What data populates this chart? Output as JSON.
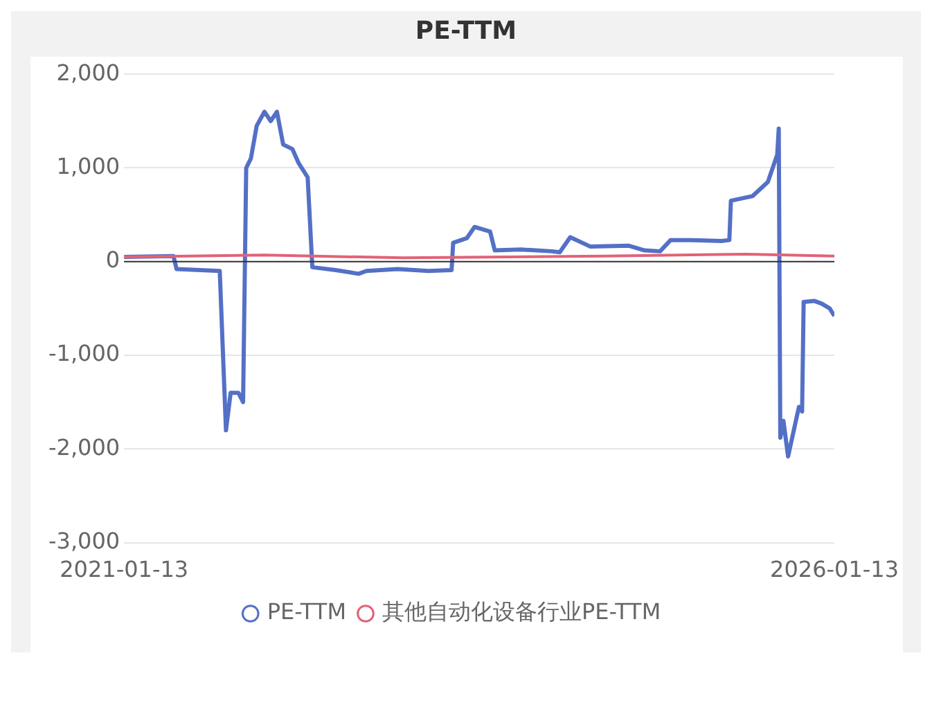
{
  "chart_data": {
    "type": "line",
    "title": "PE-TTM",
    "xlim": [
      "2021-01-13",
      "2026-01-13"
    ],
    "xticks": [
      "2021-01-13",
      "2026-01-13"
    ],
    "ylim": [
      -3000,
      2000
    ],
    "yticks": [
      {
        "value": -3000,
        "label": "-3,000"
      },
      {
        "value": -2000,
        "label": "-2,000"
      },
      {
        "value": -1000,
        "label": "-1,000"
      },
      {
        "value": 0,
        "label": "0"
      },
      {
        "value": 1000,
        "label": "1,000"
      },
      {
        "value": 2000,
        "label": "2,000"
      }
    ],
    "grid": "y",
    "legend": "bottom",
    "line_style": "solid",
    "series": [
      {
        "name": "PE-TTM",
        "color": "#5470c6",
        "x": [
          "2021-01-13",
          "2021-05-20",
          "2021-05-28",
          "2021-09-16",
          "2021-10-02",
          "2021-10-14",
          "2021-11-03",
          "2021-11-15",
          "2021-11-23",
          "2021-12-05",
          "2021-12-20",
          "2022-01-09",
          "2022-01-25",
          "2022-02-10",
          "2022-02-26",
          "2022-03-22",
          "2022-04-07",
          "2022-04-30",
          "2022-05-12",
          "2022-07-11",
          "2022-09-08",
          "2022-09-28",
          "2022-12-17",
          "2023-03-06",
          "2023-05-05",
          "2023-05-09",
          "2023-06-13",
          "2023-07-03",
          "2023-08-12",
          "2023-08-24",
          "2023-10-30",
          "2024-01-18",
          "2024-02-07",
          "2024-03-05",
          "2024-04-26",
          "2024-08-03",
          "2024-09-12",
          "2024-10-22",
          "2024-11-18",
          "2025-01-09",
          "2025-03-29",
          "2025-04-18",
          "2025-04-22",
          "2025-06-17",
          "2025-07-26",
          "2025-08-19",
          "2025-08-23",
          "2025-08-27",
          "2025-09-04",
          "2025-09-16",
          "2025-10-06",
          "2025-10-14",
          "2025-10-22",
          "2025-10-26",
          "2025-11-23",
          "2025-12-12",
          "2026-01-01",
          "2026-01-13"
        ],
        "values": [
          50,
          60,
          -80,
          -100,
          -1800,
          -1400,
          -1400,
          -1500,
          1000,
          1100,
          1450,
          1600,
          1500,
          1600,
          1250,
          1200,
          1050,
          900,
          -60,
          -90,
          -130,
          -100,
          -80,
          -100,
          -90,
          200,
          250,
          370,
          320,
          120,
          130,
          110,
          100,
          260,
          160,
          170,
          120,
          110,
          230,
          230,
          220,
          230,
          650,
          700,
          850,
          1140,
          1420,
          -1880,
          -1700,
          -2080,
          -1700,
          -1550,
          -1600,
          -430,
          -420,
          -450,
          -500,
          -580
        ]
      },
      {
        "name": "其他自动化设备行业PE-TTM",
        "color": "#e06377",
        "x": [
          "2021-01-13",
          "2022-01-09",
          "2023-01-01",
          "2024-06-01",
          "2025-06-01",
          "2026-01-13"
        ],
        "values": [
          50,
          70,
          40,
          60,
          80,
          60
        ]
      }
    ]
  }
}
